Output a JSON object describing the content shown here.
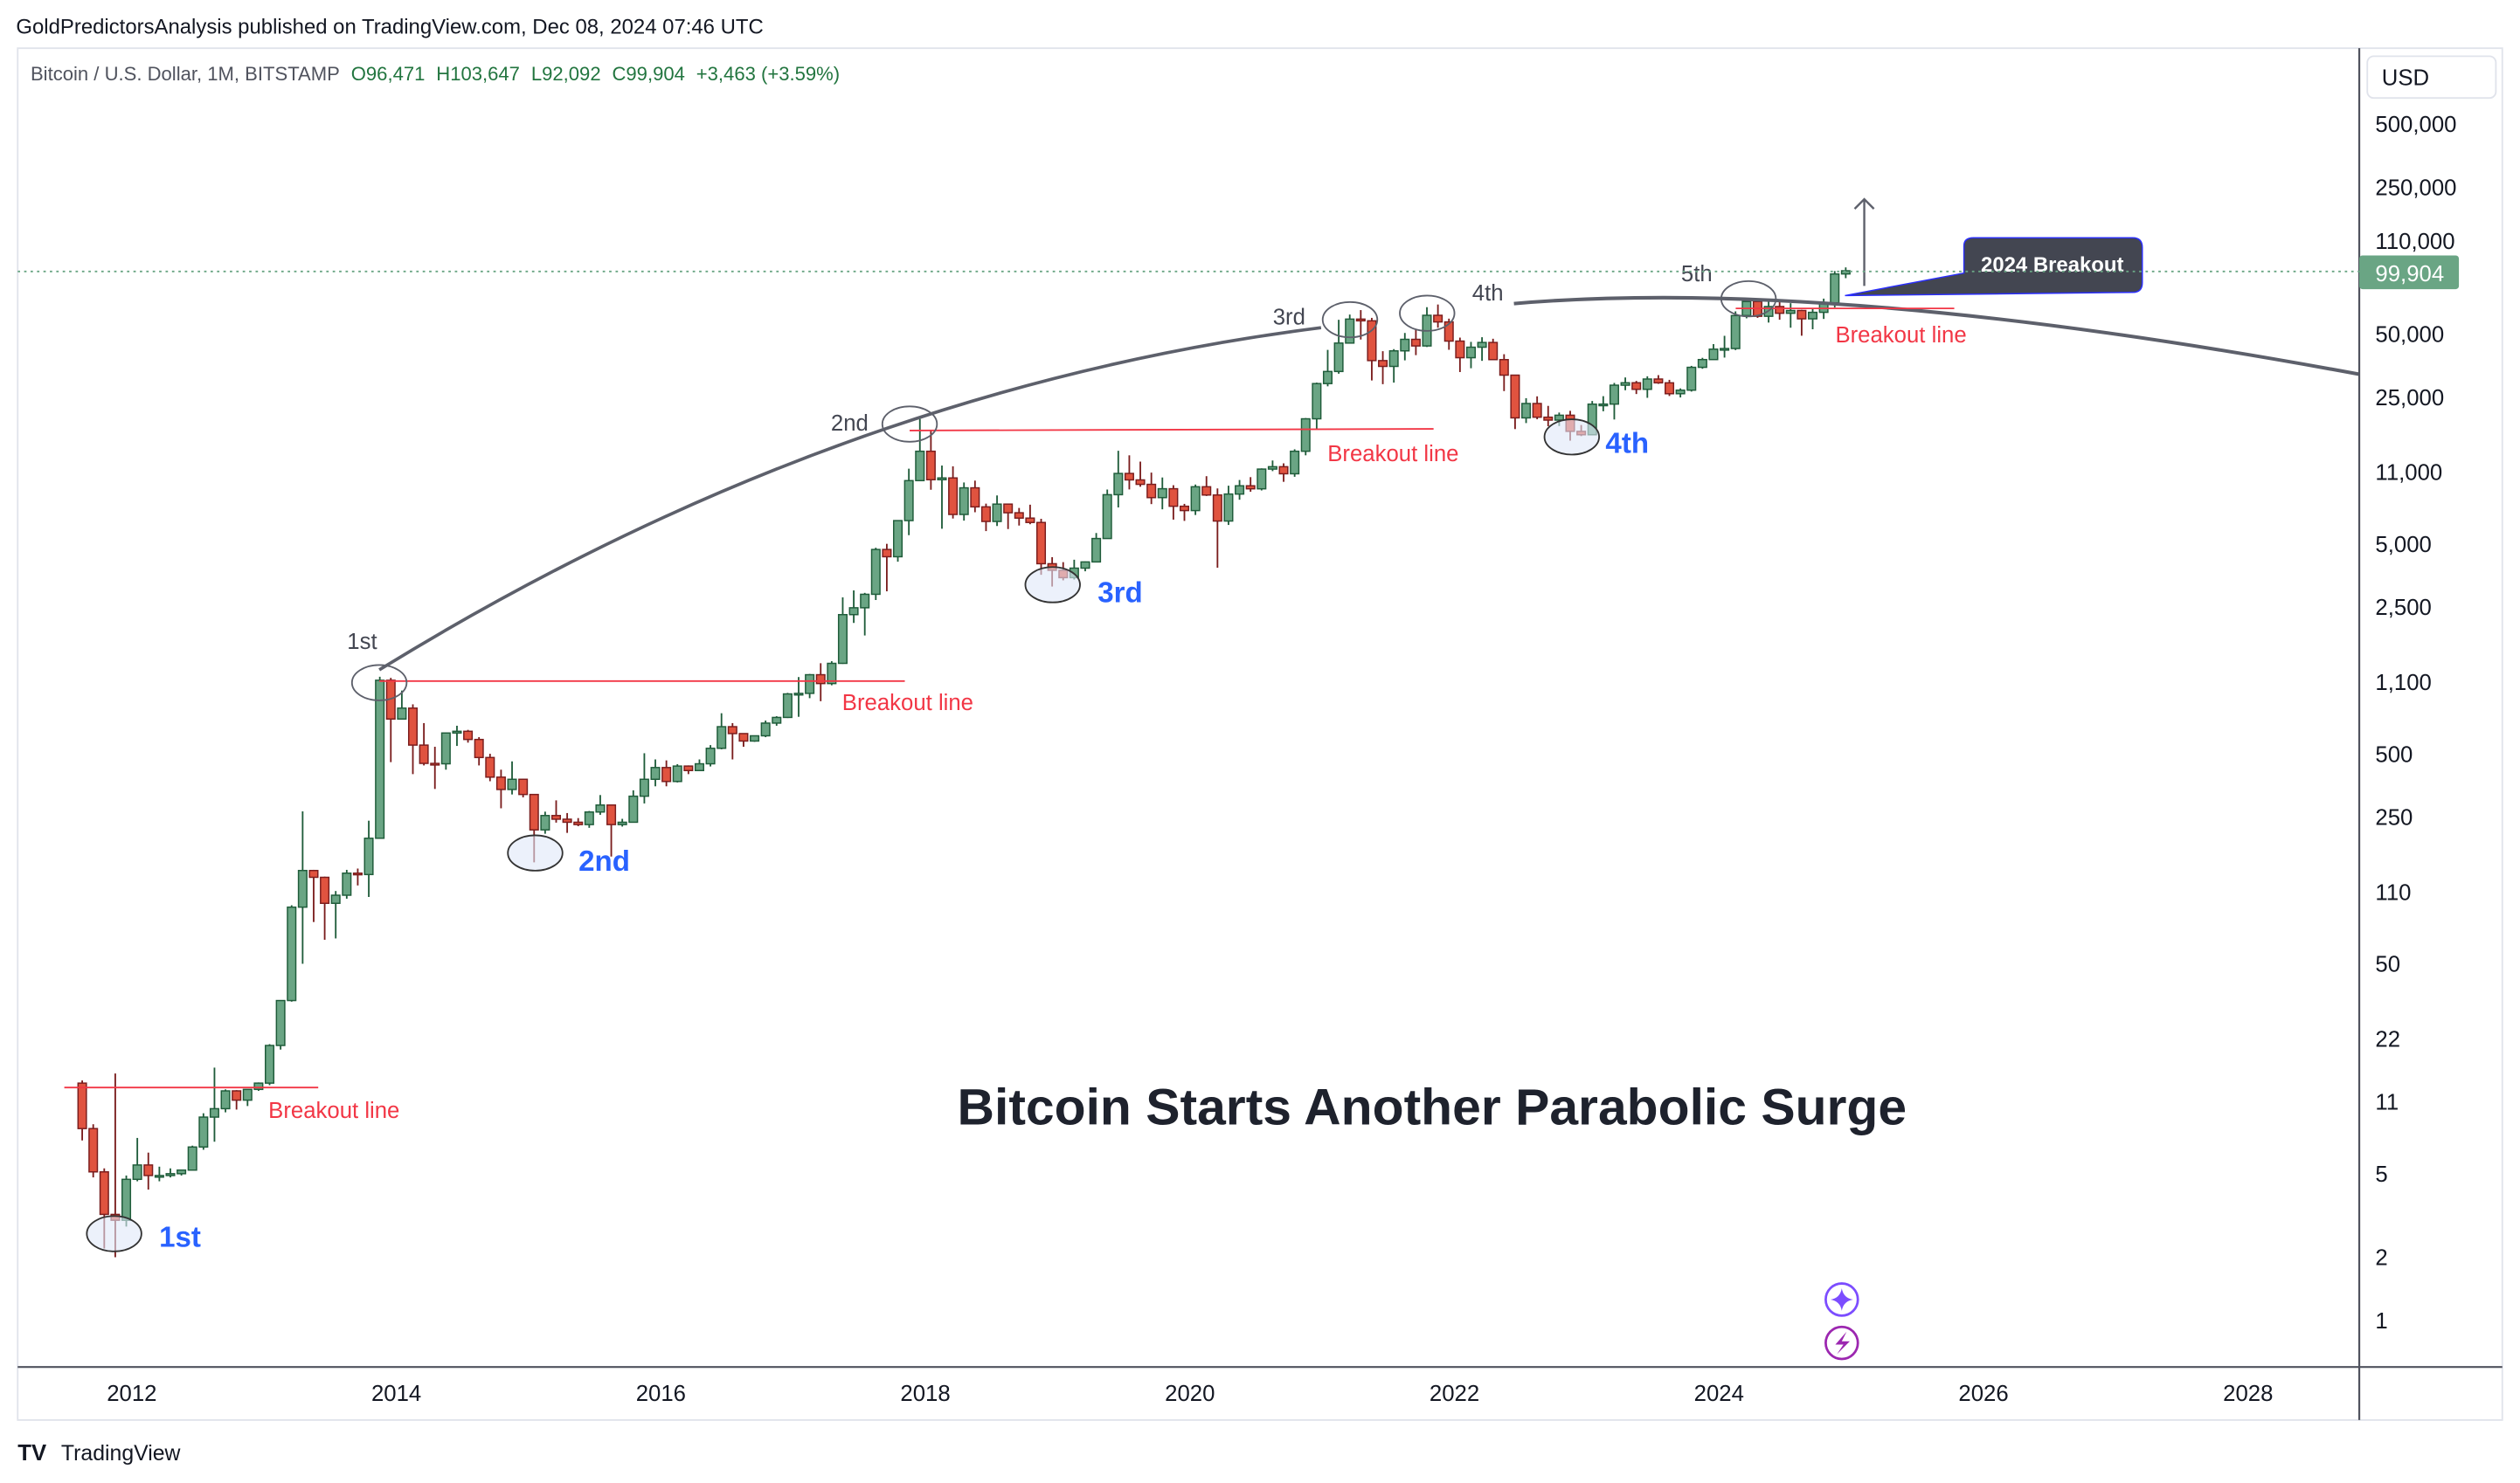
{
  "header": {
    "published": "GoldPredictorsAnalysis published on TradingView.com, Dec 08, 2024 07:46 UTC",
    "symbol": "Bitcoin / U.S. Dollar, 1M, BITSTAMP",
    "open": "O96,471",
    "high": "H103,647",
    "low": "L92,092",
    "close": "C99,904",
    "change": "+3,463 (+3.59%)"
  },
  "price_axis": {
    "currency": "USD",
    "current_price_label": "99,904",
    "current_price": 99904
  },
  "footer": {
    "brand": "TradingView"
  },
  "colors": {
    "up": "#6aa584",
    "up_border": "#1f5c3a",
    "down": "#e0533f",
    "down_border": "#7a1d1d",
    "breakout": "#f23645",
    "trough_label": "#2962ff",
    "arc": "#5d606b",
    "callout": "#434651"
  },
  "icons": [
    "sparkle-icon",
    "lightning-icon"
  ],
  "annotations": {
    "title": "Bitcoin Starts Another Parabolic Surge",
    "peaks": [
      "1st",
      "2nd",
      "3rd",
      "4th",
      "5th"
    ],
    "troughs": [
      "1st",
      "2nd",
      "3rd",
      "4th"
    ],
    "breakout_label": "Breakout line",
    "callout": "2024 Breakout"
  },
  "chart_data": {
    "type": "candlestick",
    "title": "Bitcoin Starts Another Parabolic Surge",
    "scale": "log",
    "ylim": [
      0.6,
      800000
    ],
    "xlim": [
      "2011-06",
      "2029-01"
    ],
    "grid": false,
    "x_ticks": [
      "2012",
      "2014",
      "2016",
      "2018",
      "2020",
      "2022",
      "2024",
      "2026",
      "2028"
    ],
    "y_ticks": [
      {
        "label": "500,000",
        "value": 500000
      },
      {
        "label": "250,000",
        "value": 250000
      },
      {
        "label": "110,000",
        "value": 110000
      },
      {
        "label": "50,000",
        "value": 50000
      },
      {
        "label": "25,000",
        "value": 25000
      },
      {
        "label": "11,000",
        "value": 11000
      },
      {
        "label": "5,000",
        "value": 5000
      },
      {
        "label": "2,500",
        "value": 2500
      },
      {
        "label": "1,100",
        "value": 1100
      },
      {
        "label": "500",
        "value": 500
      },
      {
        "label": "250",
        "value": 250
      },
      {
        "label": "110",
        "value": 110
      },
      {
        "label": "50",
        "value": 50
      },
      {
        "label": "22",
        "value": 22
      },
      {
        "label": "11",
        "value": 11
      },
      {
        "label": "5",
        "value": 5
      },
      {
        "label": "2",
        "value": 2
      },
      {
        "label": "1",
        "value": 1
      }
    ],
    "start_month": "2011-08",
    "ohlc_fields": [
      "open",
      "high",
      "low",
      "close"
    ],
    "ohlc": [
      [
        13.5,
        13.9,
        7.2,
        8.2
      ],
      [
        8.2,
        8.6,
        4.8,
        5.1
      ],
      [
        5.1,
        5.3,
        2.2,
        3.2
      ],
      [
        3.2,
        15,
        2.0,
        3.0
      ],
      [
        3.0,
        4.9,
        2.8,
        4.7
      ],
      [
        4.7,
        7.4,
        4.6,
        5.5
      ],
      [
        5.5,
        6.3,
        4.2,
        4.9
      ],
      [
        4.9,
        5.4,
        4.6,
        4.9
      ],
      [
        4.9,
        5.3,
        4.8,
        5.0
      ],
      [
        5.0,
        5.2,
        4.9,
        5.2
      ],
      [
        5.2,
        6.8,
        5.2,
        6.7
      ],
      [
        6.7,
        9.7,
        6.5,
        9.3
      ],
      [
        9.3,
        16,
        7.1,
        10.2
      ],
      [
        10.2,
        12.6,
        9.8,
        12.4
      ],
      [
        12.4,
        12.5,
        10.1,
        11.2
      ],
      [
        11.2,
        12.6,
        10.5,
        12.6
      ],
      [
        12.6,
        13.6,
        12.4,
        13.5
      ],
      [
        13.5,
        20.7,
        13.2,
        20.4
      ],
      [
        20.4,
        33.5,
        19.5,
        33.4
      ],
      [
        33.4,
        95,
        33,
        93
      ],
      [
        93,
        266,
        50,
        139
      ],
      [
        139,
        140,
        79,
        129
      ],
      [
        129,
        130,
        65,
        97
      ],
      [
        97,
        111,
        66,
        106
      ],
      [
        106,
        140,
        102,
        135
      ],
      [
        135,
        142,
        118,
        133
      ],
      [
        133,
        240,
        104,
        198
      ],
      [
        198,
        1163,
        197,
        1120
      ],
      [
        1120,
        1150,
        456,
        732
      ],
      [
        732,
        1000,
        730,
        825
      ],
      [
        825,
        860,
        400,
        550
      ],
      [
        550,
        700,
        440,
        450
      ],
      [
        450,
        540,
        340,
        448
      ],
      [
        448,
        630,
        420,
        628
      ],
      [
        628,
        680,
        545,
        640
      ],
      [
        640,
        650,
        565,
        585
      ],
      [
        585,
        600,
        440,
        480
      ],
      [
        480,
        500,
        370,
        387
      ],
      [
        387,
        420,
        275,
        338
      ],
      [
        338,
        460,
        320,
        378
      ],
      [
        378,
        380,
        310,
        320
      ],
      [
        320,
        320,
        152,
        217
      ],
      [
        217,
        265,
        208,
        254
      ],
      [
        254,
        300,
        235,
        244
      ],
      [
        244,
        261,
        210,
        236
      ],
      [
        236,
        247,
        226,
        230
      ],
      [
        230,
        267,
        222,
        264
      ],
      [
        264,
        318,
        256,
        285
      ],
      [
        285,
        285,
        162,
        230
      ],
      [
        230,
        245,
        225,
        236
      ],
      [
        236,
        335,
        235,
        314
      ],
      [
        314,
        503,
        290,
        378
      ],
      [
        378,
        470,
        350,
        430
      ],
      [
        430,
        465,
        350,
        369
      ],
      [
        369,
        446,
        365,
        437
      ],
      [
        437,
        440,
        400,
        416
      ],
      [
        416,
        470,
        415,
        448
      ],
      [
        448,
        550,
        435,
        531
      ],
      [
        531,
        780,
        525,
        673
      ],
      [
        673,
        700,
        470,
        624
      ],
      [
        624,
        625,
        540,
        575
      ],
      [
        575,
        610,
        570,
        609
      ],
      [
        609,
        720,
        600,
        700
      ],
      [
        700,
        755,
        680,
        745
      ],
      [
        745,
        975,
        740,
        964
      ],
      [
        964,
        1160,
        750,
        970
      ],
      [
        970,
        1200,
        920,
        1190
      ],
      [
        1190,
        1350,
        890,
        1080
      ],
      [
        1080,
        1380,
        1060,
        1348
      ],
      [
        1348,
        2780,
        1340,
        2300
      ],
      [
        2300,
        3000,
        2100,
        2480
      ],
      [
        2480,
        2920,
        1830,
        2875
      ],
      [
        2875,
        4790,
        2700,
        4700
      ],
      [
        4700,
        5000,
        2970,
        4340
      ],
      [
        4340,
        6460,
        4110,
        6450
      ],
      [
        6450,
        11400,
        5500,
        10000
      ],
      [
        10000,
        19670,
        10000,
        13800
      ],
      [
        13800,
        17250,
        9050,
        10100
      ],
      [
        10100,
        11800,
        5900,
        10300
      ],
      [
        10300,
        11700,
        6600,
        6900
      ],
      [
        6900,
        9800,
        6450,
        9240
      ],
      [
        9240,
        10000,
        7070,
        7500
      ],
      [
        7500,
        7770,
        5750,
        6390
      ],
      [
        6390,
        8500,
        6080,
        7730
      ],
      [
        7730,
        7760,
        5880,
        7030
      ],
      [
        7030,
        7410,
        6110,
        6630
      ],
      [
        6630,
        7680,
        6200,
        6320
      ],
      [
        6320,
        6580,
        3560,
        4020
      ],
      [
        4020,
        4320,
        3130,
        3740
      ],
      [
        3740,
        4090,
        3350,
        3450
      ],
      [
        3450,
        4200,
        3380,
        3830
      ],
      [
        3830,
        4120,
        3700,
        4100
      ],
      [
        4100,
        5630,
        4080,
        5300
      ],
      [
        5300,
        9070,
        5300,
        8570
      ],
      [
        8570,
        13880,
        7450,
        10820
      ],
      [
        10820,
        13200,
        9080,
        10080
      ],
      [
        10080,
        12320,
        9350,
        9600
      ],
      [
        9600,
        10920,
        7730,
        8300
      ],
      [
        8300,
        10350,
        7300,
        9150
      ],
      [
        9150,
        9510,
        6520,
        7550
      ],
      [
        7550,
        7750,
        6430,
        7200
      ],
      [
        7200,
        9580,
        6860,
        9350
      ],
      [
        9350,
        10500,
        8450,
        8540
      ],
      [
        8540,
        9180,
        3850,
        6420
      ],
      [
        6420,
        9460,
        6150,
        8630
      ],
      [
        8630,
        10070,
        8110,
        9450
      ],
      [
        9450,
        10390,
        8850,
        9140
      ],
      [
        9140,
        11440,
        8980,
        11350
      ],
      [
        11350,
        12470,
        11100,
        11650
      ],
      [
        11650,
        12090,
        9870,
        10780
      ],
      [
        10780,
        14100,
        10430,
        13800
      ],
      [
        13800,
        19860,
        13200,
        19700
      ],
      [
        19700,
        29300,
        17600,
        28990
      ],
      [
        28990,
        41950,
        28130,
        33100
      ],
      [
        33100,
        58350,
        32300,
        45200
      ],
      [
        45200,
        61800,
        44950,
        58800
      ],
      [
        58800,
        64900,
        47000,
        57700
      ],
      [
        57700,
        59600,
        30000,
        37300
      ],
      [
        37300,
        41350,
        28800,
        35000
      ],
      [
        35000,
        42300,
        29300,
        41500
      ],
      [
        41500,
        50500,
        37400,
        47100
      ],
      [
        47100,
        52900,
        39600,
        43800
      ],
      [
        43800,
        67000,
        43300,
        61300
      ],
      [
        61300,
        69000,
        53500,
        57000
      ],
      [
        57000,
        59100,
        42000,
        46200
      ],
      [
        46200,
        48000,
        32900,
        38500
      ],
      [
        38500,
        45800,
        34300,
        43200
      ],
      [
        43200,
        48200,
        37200,
        45500
      ],
      [
        45500,
        47400,
        37700,
        37700
      ],
      [
        37700,
        40000,
        26700,
        31800
      ],
      [
        31800,
        31900,
        17600,
        19900
      ],
      [
        19900,
        24700,
        18800,
        23300
      ],
      [
        23300,
        25200,
        19600,
        20050
      ],
      [
        20050,
        22700,
        18150,
        19420
      ],
      [
        19420,
        21100,
        18200,
        20490
      ],
      [
        20490,
        21500,
        15500,
        17170
      ],
      [
        17170,
        18400,
        16300,
        16540
      ],
      [
        16540,
        23950,
        16500,
        23130
      ],
      [
        23130,
        25250,
        21400,
        23150
      ],
      [
        23150,
        29200,
        19550,
        28480
      ],
      [
        28480,
        31000,
        26950,
        29250
      ],
      [
        29250,
        29850,
        25850,
        27220
      ],
      [
        27220,
        31400,
        24800,
        30470
      ],
      [
        30470,
        31800,
        28900,
        29230
      ],
      [
        29230,
        30200,
        25300,
        25940
      ],
      [
        25940,
        27500,
        24900,
        26970
      ],
      [
        26970,
        35200,
        26550,
        34650
      ],
      [
        34650,
        38450,
        34100,
        37720
      ],
      [
        37720,
        44700,
        37600,
        42280
      ],
      [
        42280,
        48950,
        38550,
        42580
      ],
      [
        42580,
        64000,
        41850,
        61130
      ],
      [
        61130,
        73800,
        59300,
        71330
      ],
      [
        71330,
        72800,
        59600,
        60640
      ],
      [
        60640,
        71950,
        56600,
        67490
      ],
      [
        67490,
        71950,
        58400,
        62680
      ],
      [
        62680,
        70000,
        53500,
        64620
      ],
      [
        64620,
        65100,
        49000,
        58970
      ],
      [
        58970,
        66500,
        52600,
        63330
      ],
      [
        63330,
        73600,
        58900,
        70290
      ],
      [
        70290,
        99600,
        66800,
        96440
      ],
      [
        96471,
        103647,
        92092,
        99904
      ]
    ]
  }
}
